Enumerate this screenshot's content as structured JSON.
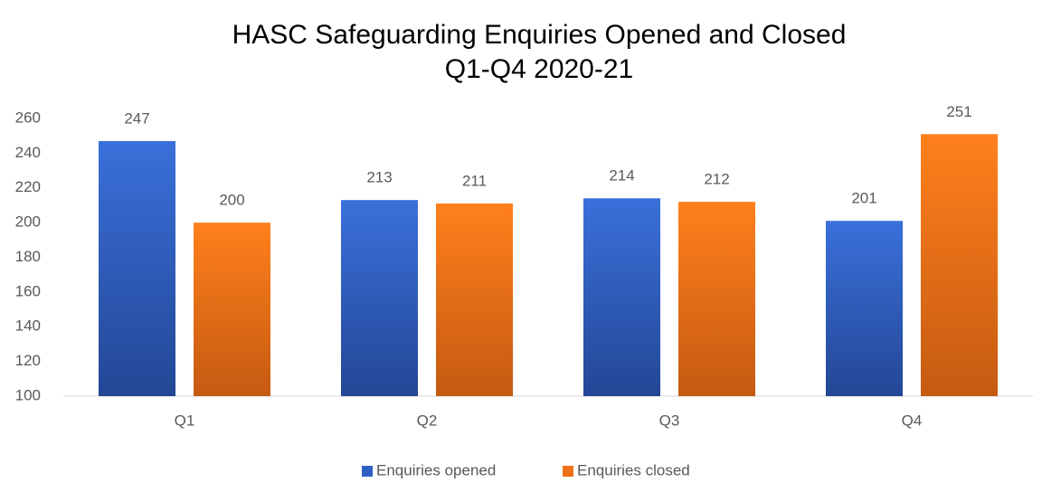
{
  "chart_data": {
    "type": "bar",
    "title": [
      "HASC Safeguarding Enquiries Opened and Closed",
      "Q1-Q4 2020-21"
    ],
    "categories": [
      "Q1",
      "Q2",
      "Q3",
      "Q4"
    ],
    "series": [
      {
        "name": "Enquiries opened",
        "color": "#2f5fc4",
        "values": [
          247,
          213,
          214,
          201
        ]
      },
      {
        "name": "Enquiries closed",
        "color": "#ed7117",
        "values": [
          200,
          211,
          212,
          251
        ]
      }
    ],
    "ylim": [
      100,
      260
    ],
    "yticks": [
      100,
      120,
      140,
      160,
      180,
      200,
      220,
      240,
      260
    ],
    "grid": false,
    "legend": "bottom"
  }
}
